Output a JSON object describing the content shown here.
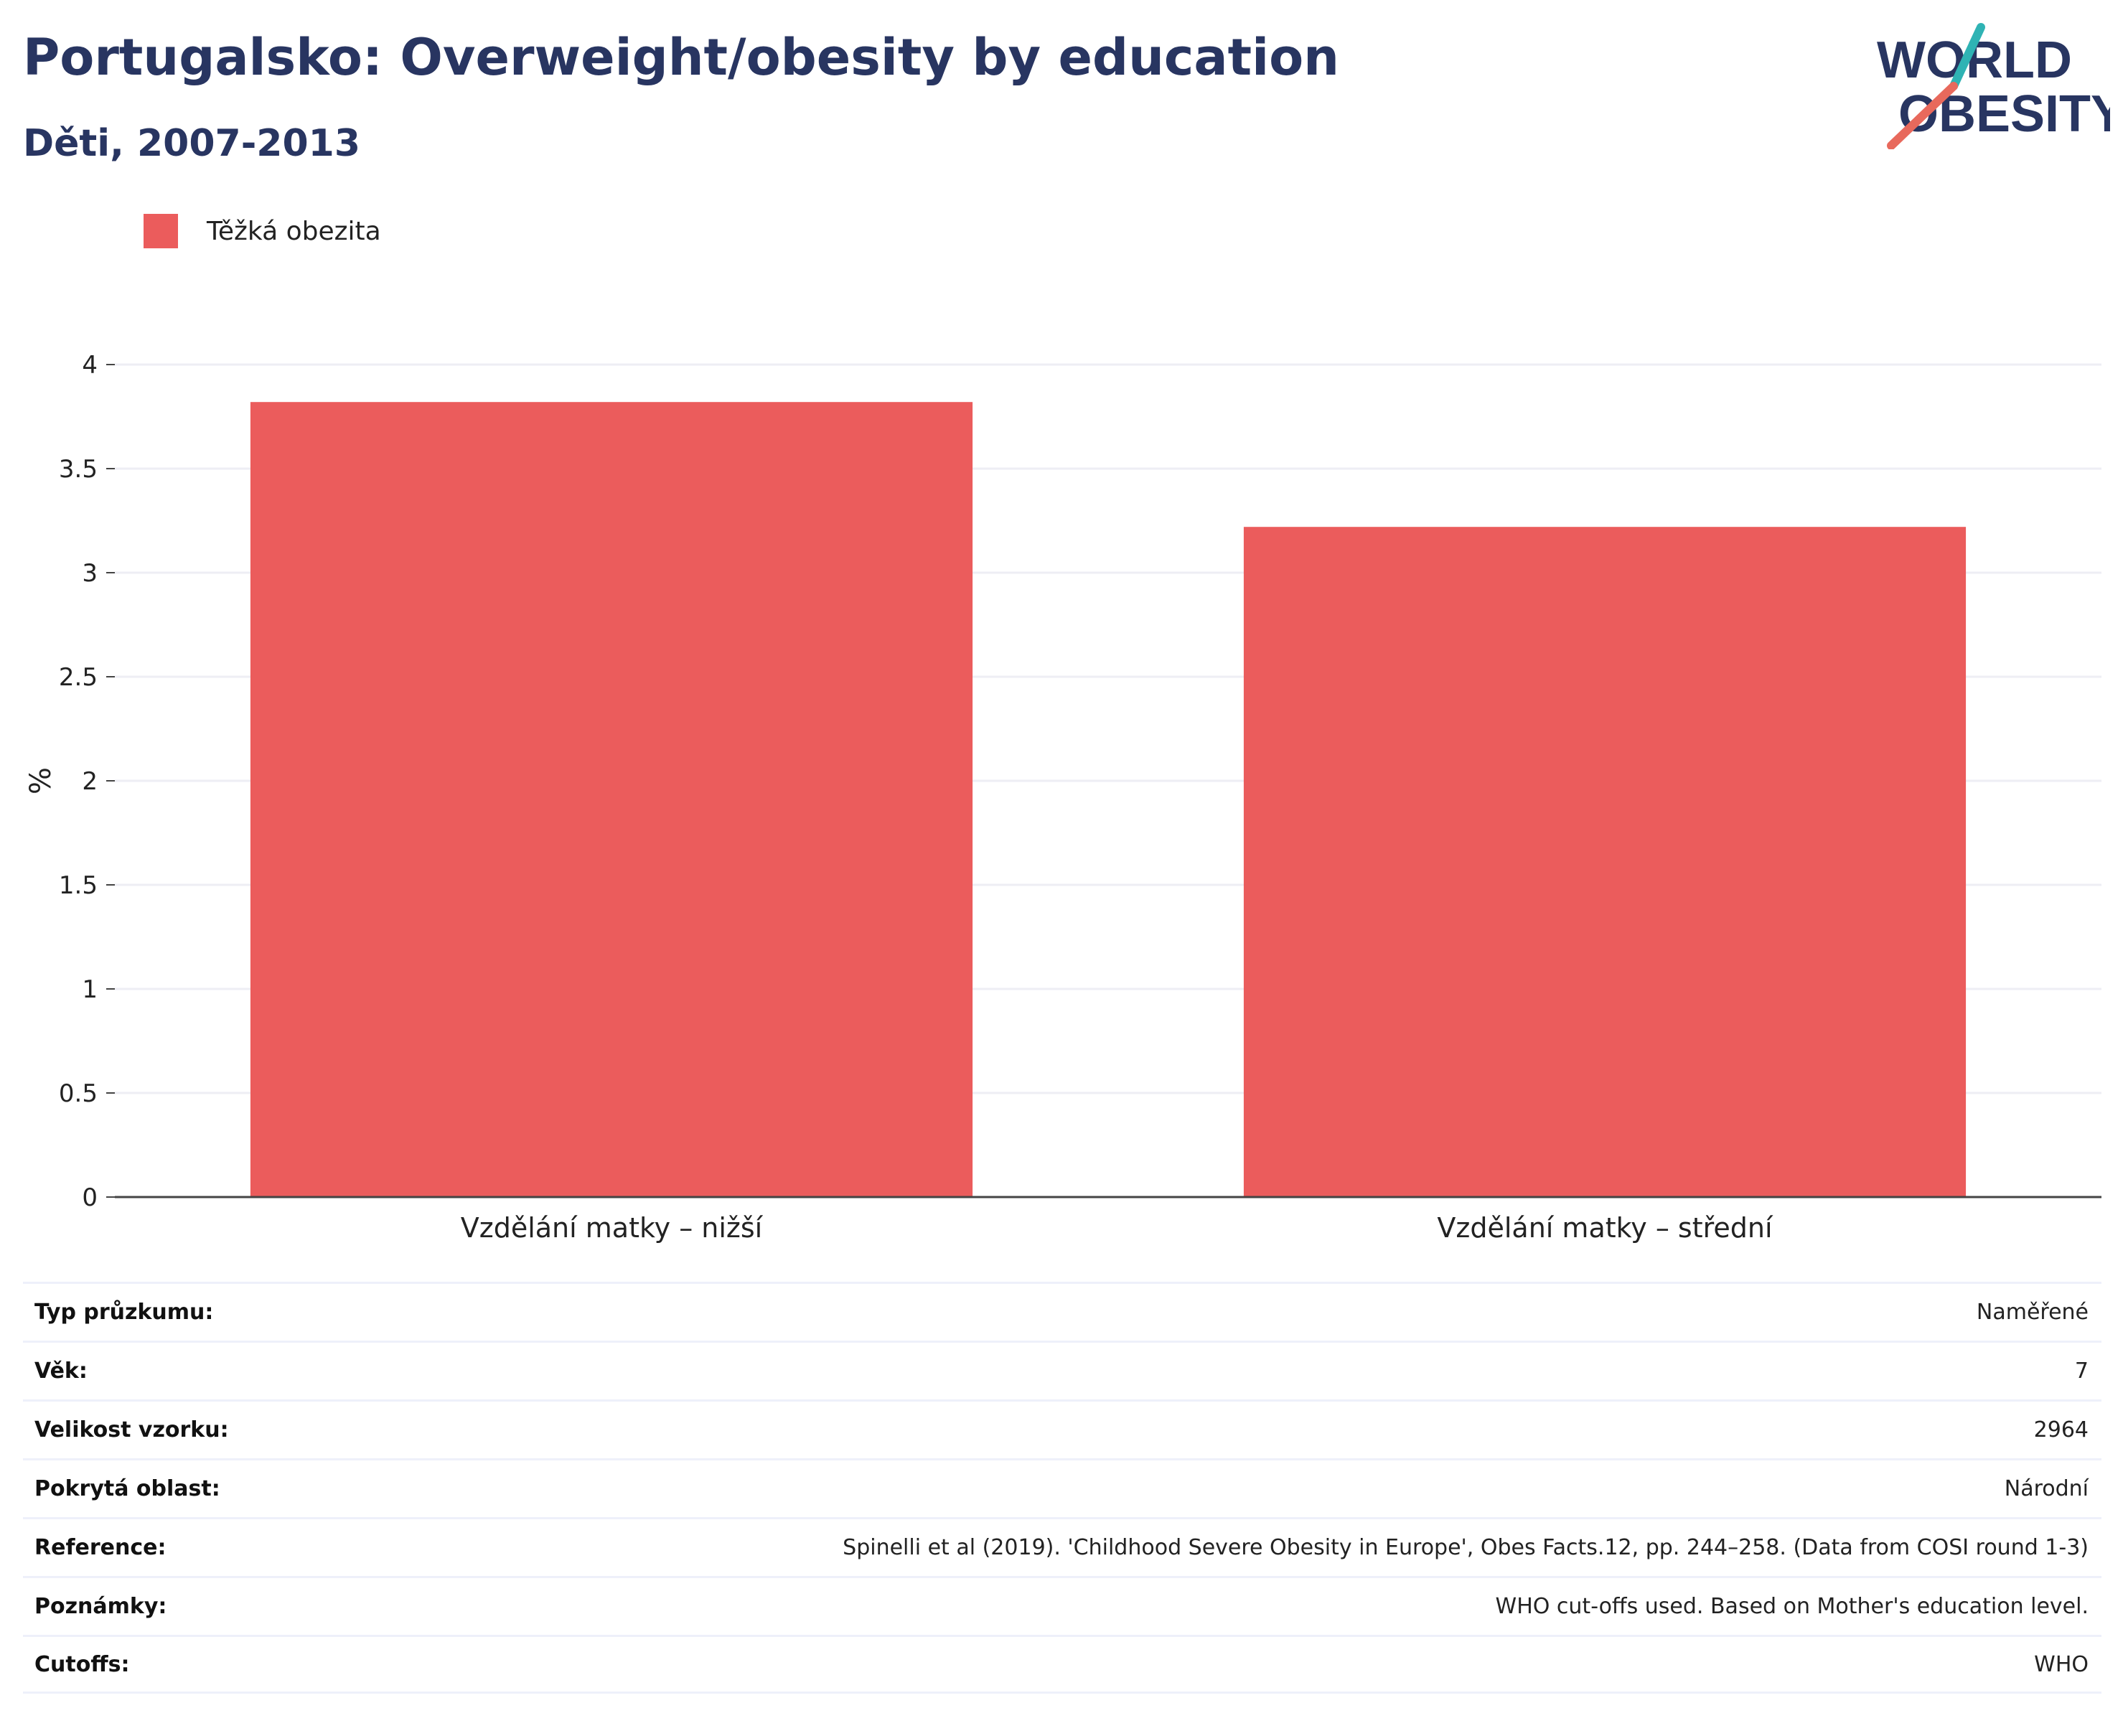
{
  "header": {
    "title": "Portugalsko: Overweight/obesity by education",
    "subtitle": "Děti, 2007-2013"
  },
  "logo": {
    "line1": "WORLD",
    "line2": "OBESITY",
    "accent_teal": "#2fb3b4",
    "accent_coral": "#e8695c",
    "text_color": "#283561"
  },
  "colors": {
    "bar": "#eb5c5c",
    "grid": "#eeeef4",
    "axis": "#444444"
  },
  "chart_data": {
    "type": "bar",
    "categories": [
      "Vzdělání matky – nižší",
      "Vzdělání matky – střední"
    ],
    "series": [
      {
        "name": "Těžká obezita",
        "values": [
          3.82,
          3.22
        ]
      }
    ],
    "ylabel": "%",
    "ylim": [
      0,
      4
    ],
    "yticks": [
      "0",
      "0.5",
      "1",
      "1.5",
      "2",
      "2.5",
      "3",
      "3.5",
      "4"
    ],
    "grid": true,
    "legend": "top-left"
  },
  "info_table": [
    {
      "label": "Typ průzkumu:",
      "value": "Naměřené"
    },
    {
      "label": "Věk:",
      "value": "7"
    },
    {
      "label": "Velikost vzorku:",
      "value": "2964"
    },
    {
      "label": "Pokrytá oblast:",
      "value": "Národní"
    },
    {
      "label": "Reference:",
      "value": "Spinelli et al (2019). 'Childhood Severe Obesity in Europe', Obes Facts.12, pp. 244–258. (Data from COSI round 1-3)"
    },
    {
      "label": "Poznámky:",
      "value": "WHO cut-offs used. Based on Mother's education level."
    },
    {
      "label": "Cutoffs:",
      "value": "WHO"
    }
  ]
}
